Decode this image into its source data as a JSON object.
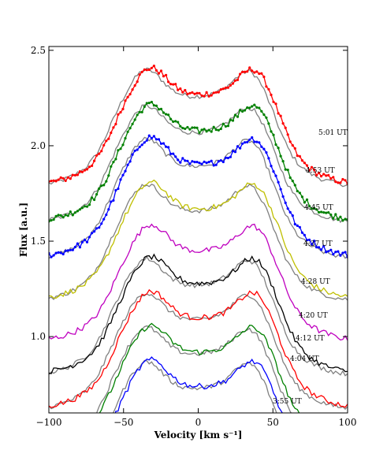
{
  "chart_data": {
    "type": "line",
    "xlabel": "Velocity [km s⁻¹]",
    "ylabel": "Flux [a.u.]",
    "xlim": [
      -100,
      100
    ],
    "ylim": [
      0.6,
      2.52
    ],
    "xticks": [
      -100,
      -50,
      0,
      50,
      100
    ],
    "xtick_labels": [
      "−100",
      "−50",
      "0",
      "50",
      "100"
    ],
    "yticks": [
      1.0,
      1.5,
      2.0,
      2.5
    ],
    "ytick_labels": [
      "1.0",
      "1.5",
      "2.0",
      "2.5"
    ],
    "grid": false,
    "legend": "none",
    "series": [
      {
        "name": "5:01 UT",
        "color": "#ff0000",
        "base": 1.8,
        "amp": 0.69,
        "markers": true,
        "reference": true
      },
      {
        "name": "4:53 UT",
        "color": "#008000",
        "base": 1.61,
        "amp": 0.69,
        "markers": true,
        "reference": true
      },
      {
        "name": "4:45 UT",
        "color": "#0000ff",
        "base": 1.42,
        "amp": 0.71,
        "markers": true,
        "reference": true
      },
      {
        "name": "4:37 UT",
        "color": "#bfbf00",
        "base": 1.2,
        "amp": 0.69,
        "markers": false,
        "reference": true
      },
      {
        "name": "4:28 UT",
        "color": "#bf00bf",
        "base": 0.98,
        "amp": 0.69,
        "markers": false,
        "reference": false
      },
      {
        "name": "4:20 UT",
        "color": "#000000",
        "base": 0.81,
        "amp": 0.69,
        "markers": false,
        "reference": true
      },
      {
        "name": "4:12 UT",
        "color": "#ff0000",
        "base": 0.63,
        "amp": 0.69,
        "markers": false,
        "reference": true
      },
      {
        "name": "4:04 UT",
        "color": "#008000",
        "base": 0.45,
        "amp": 0.69,
        "markers": false,
        "reference": true
      },
      {
        "name": "3:55 UT",
        "color": "#0000ff",
        "base": 0.27,
        "amp": 0.69,
        "markers": false,
        "reference": true
      }
    ],
    "reference_color": "#808080",
    "time_labels": [
      "5:01 UT",
      "4:53 UT",
      "4:45 UT",
      "4:37 UT",
      "4:28 UT",
      "4:20 UT",
      "4:12 UT",
      "4:04 UT",
      "3:55 UT"
    ]
  }
}
